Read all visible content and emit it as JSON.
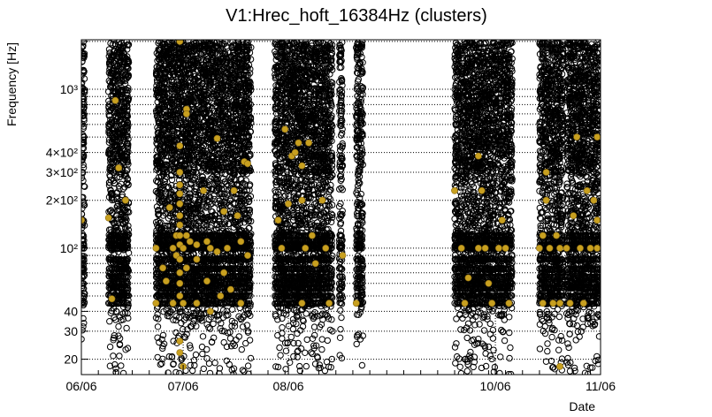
{
  "chart_data": {
    "type": "scatter",
    "title": "V1:Hrec_hoft_16384Hz (clusters)",
    "xlabel": "Date",
    "ylabel": "Frequency [Hz]",
    "x_is_date": true,
    "xlim": [
      "2024-06-06",
      "2024-11-06"
    ],
    "ylim": [
      16,
      2048
    ],
    "y_scale": "log",
    "grid": true,
    "x_ticks": [
      {
        "value": "2024-06-06",
        "label": "06/06"
      },
      {
        "value": "2024-07-06",
        "label": "07/06"
      },
      {
        "value": "2024-08-06",
        "label": "08/06"
      },
      {
        "value": "2024-10-06",
        "label": "10/06"
      },
      {
        "value": "2024-11-06",
        "label": "11/06"
      }
    ],
    "y_ticks": [
      {
        "value": 20,
        "label": "20"
      },
      {
        "value": 30,
        "label": "30"
      },
      {
        "value": 40,
        "label": "40"
      },
      {
        "value": 100,
        "label": "10²"
      },
      {
        "value": 200,
        "label": "2×10²"
      },
      {
        "value": 300,
        "label": "3×10²"
      },
      {
        "value": 400,
        "label": "4×10²"
      },
      {
        "value": 1000,
        "label": "10³"
      }
    ],
    "series": [
      {
        "marker": "open-circle",
        "color": "#000000",
        "observing_periods": [
          [
            "2024-06-06",
            "2024-06-07"
          ],
          [
            "2024-06-14",
            "2024-06-20"
          ],
          [
            "2024-06-28",
            "2024-07-26"
          ],
          [
            "2024-08-02",
            "2024-08-19"
          ],
          [
            "2024-08-21",
            "2024-08-22"
          ],
          [
            "2024-08-26",
            "2024-08-28"
          ],
          [
            "2024-09-24",
            "2024-10-11"
          ],
          [
            "2024-10-19",
            "2024-10-26"
          ],
          [
            "2024-10-27",
            "2024-11-06"
          ]
        ],
        "frequency_bands": [
          {
            "range": [
              500,
              2000
            ],
            "density": "saturated"
          },
          {
            "range": [
              300,
              500
            ],
            "density": "saturated"
          },
          {
            "range": [
              150,
              300
            ],
            "density": "dense"
          },
          {
            "range": [
              50,
              150
            ],
            "density": "dense"
          },
          {
            "range": [
              35,
              50
            ],
            "density": "moderate"
          },
          {
            "range": [
              16,
              35
            ],
            "density": "sparse"
          }
        ],
        "dominant_lines_hz": [
          45,
          50,
          56,
          60,
          66,
          74,
          85,
          100,
          104,
          112,
          120
        ]
      },
      {
        "marker": "filled-circle",
        "color": "#c8a020",
        "points": [
          [
            "2024-06-06",
            150
          ],
          [
            "2024-06-14",
            155
          ],
          [
            "2024-06-15",
            48
          ],
          [
            "2024-06-16",
            850
          ],
          [
            "2024-06-17",
            320
          ],
          [
            "2024-06-19",
            200
          ],
          [
            "2024-06-28",
            100
          ],
          [
            "2024-06-28",
            45
          ],
          [
            "2024-06-30",
            75
          ],
          [
            "2024-07-01",
            62
          ],
          [
            "2024-07-02",
            180
          ],
          [
            "2024-07-03",
            100
          ],
          [
            "2024-07-03",
            45
          ],
          [
            "2024-07-04",
            120
          ],
          [
            "2024-07-04",
            90
          ],
          [
            "2024-07-05",
            2000
          ],
          [
            "2024-07-05",
            440
          ],
          [
            "2024-07-05",
            300
          ],
          [
            "2024-07-05",
            250
          ],
          [
            "2024-07-05",
            220
          ],
          [
            "2024-07-05",
            190
          ],
          [
            "2024-07-05",
            160
          ],
          [
            "2024-07-05",
            140
          ],
          [
            "2024-07-05",
            120
          ],
          [
            "2024-07-05",
            105
          ],
          [
            "2024-07-05",
            85
          ],
          [
            "2024-07-05",
            70
          ],
          [
            "2024-07-05",
            60
          ],
          [
            "2024-07-05",
            50
          ],
          [
            "2024-07-05",
            26
          ],
          [
            "2024-07-05",
            22
          ],
          [
            "2024-07-06",
            100
          ],
          [
            "2024-07-06",
            45
          ],
          [
            "2024-07-06",
            18
          ],
          [
            "2024-07-07",
            750
          ],
          [
            "2024-07-07",
            700
          ],
          [
            "2024-07-07",
            120
          ],
          [
            "2024-07-07",
            75
          ],
          [
            "2024-07-08",
            110
          ],
          [
            "2024-07-10",
            105
          ],
          [
            "2024-07-10",
            85
          ],
          [
            "2024-07-10",
            45
          ],
          [
            "2024-07-12",
            230
          ],
          [
            "2024-07-13",
            110
          ],
          [
            "2024-07-13",
            62
          ],
          [
            "2024-07-14",
            100
          ],
          [
            "2024-07-14",
            40
          ],
          [
            "2024-07-16",
            490
          ],
          [
            "2024-07-16",
            95
          ],
          [
            "2024-07-17",
            50
          ],
          [
            "2024-07-18",
            170
          ],
          [
            "2024-07-18",
            70
          ],
          [
            "2024-07-19",
            100
          ],
          [
            "2024-07-20",
            55
          ],
          [
            "2024-07-21",
            230
          ],
          [
            "2024-07-22",
            160
          ],
          [
            "2024-07-23",
            110
          ],
          [
            "2024-07-23",
            45
          ],
          [
            "2024-07-24",
            350
          ],
          [
            "2024-07-25",
            340
          ],
          [
            "2024-07-25",
            90
          ],
          [
            "2024-08-03",
            150
          ],
          [
            "2024-08-04",
            100
          ],
          [
            "2024-08-05",
            560
          ],
          [
            "2024-08-06",
            190
          ],
          [
            "2024-08-07",
            380
          ],
          [
            "2024-08-08",
            400
          ],
          [
            "2024-08-09",
            460
          ],
          [
            "2024-08-10",
            330
          ],
          [
            "2024-08-10",
            200
          ],
          [
            "2024-08-10",
            45
          ],
          [
            "2024-08-11",
            100
          ],
          [
            "2024-08-12",
            460
          ],
          [
            "2024-08-13",
            120
          ],
          [
            "2024-08-14",
            80
          ],
          [
            "2024-08-16",
            200
          ],
          [
            "2024-08-17",
            100
          ],
          [
            "2024-08-18",
            45
          ],
          [
            "2024-08-22",
            90
          ],
          [
            "2024-08-26",
            45
          ],
          [
            "2024-09-24",
            230
          ],
          [
            "2024-09-26",
            100
          ],
          [
            "2024-09-27",
            45
          ],
          [
            "2024-09-28",
            65
          ],
          [
            "2024-10-01",
            380
          ],
          [
            "2024-10-01",
            100
          ],
          [
            "2024-10-02",
            230
          ],
          [
            "2024-10-03",
            100
          ],
          [
            "2024-10-04",
            60
          ],
          [
            "2024-10-05",
            45
          ],
          [
            "2024-10-07",
            100
          ],
          [
            "2024-10-08",
            150
          ],
          [
            "2024-10-09",
            100
          ],
          [
            "2024-10-10",
            45
          ],
          [
            "2024-10-19",
            100
          ],
          [
            "2024-10-20",
            45
          ],
          [
            "2024-10-20",
            120
          ],
          [
            "2024-10-21",
            200
          ],
          [
            "2024-10-21",
            300
          ],
          [
            "2024-10-22",
            100
          ],
          [
            "2024-10-23",
            45
          ],
          [
            "2024-10-24",
            120
          ],
          [
            "2024-10-25",
            100
          ],
          [
            "2024-10-25",
            45
          ],
          [
            "2024-10-25",
            18
          ],
          [
            "2024-10-27",
            100
          ],
          [
            "2024-10-28",
            45
          ],
          [
            "2024-10-29",
            160
          ],
          [
            "2024-10-30",
            500
          ],
          [
            "2024-10-31",
            100
          ],
          [
            "2024-11-01",
            45
          ],
          [
            "2024-11-02",
            230
          ],
          [
            "2024-11-03",
            100
          ],
          [
            "2024-11-04",
            200
          ],
          [
            "2024-11-05",
            100
          ],
          [
            "2024-11-05",
            500
          ],
          [
            "2024-11-05",
            150
          ]
        ]
      }
    ]
  }
}
